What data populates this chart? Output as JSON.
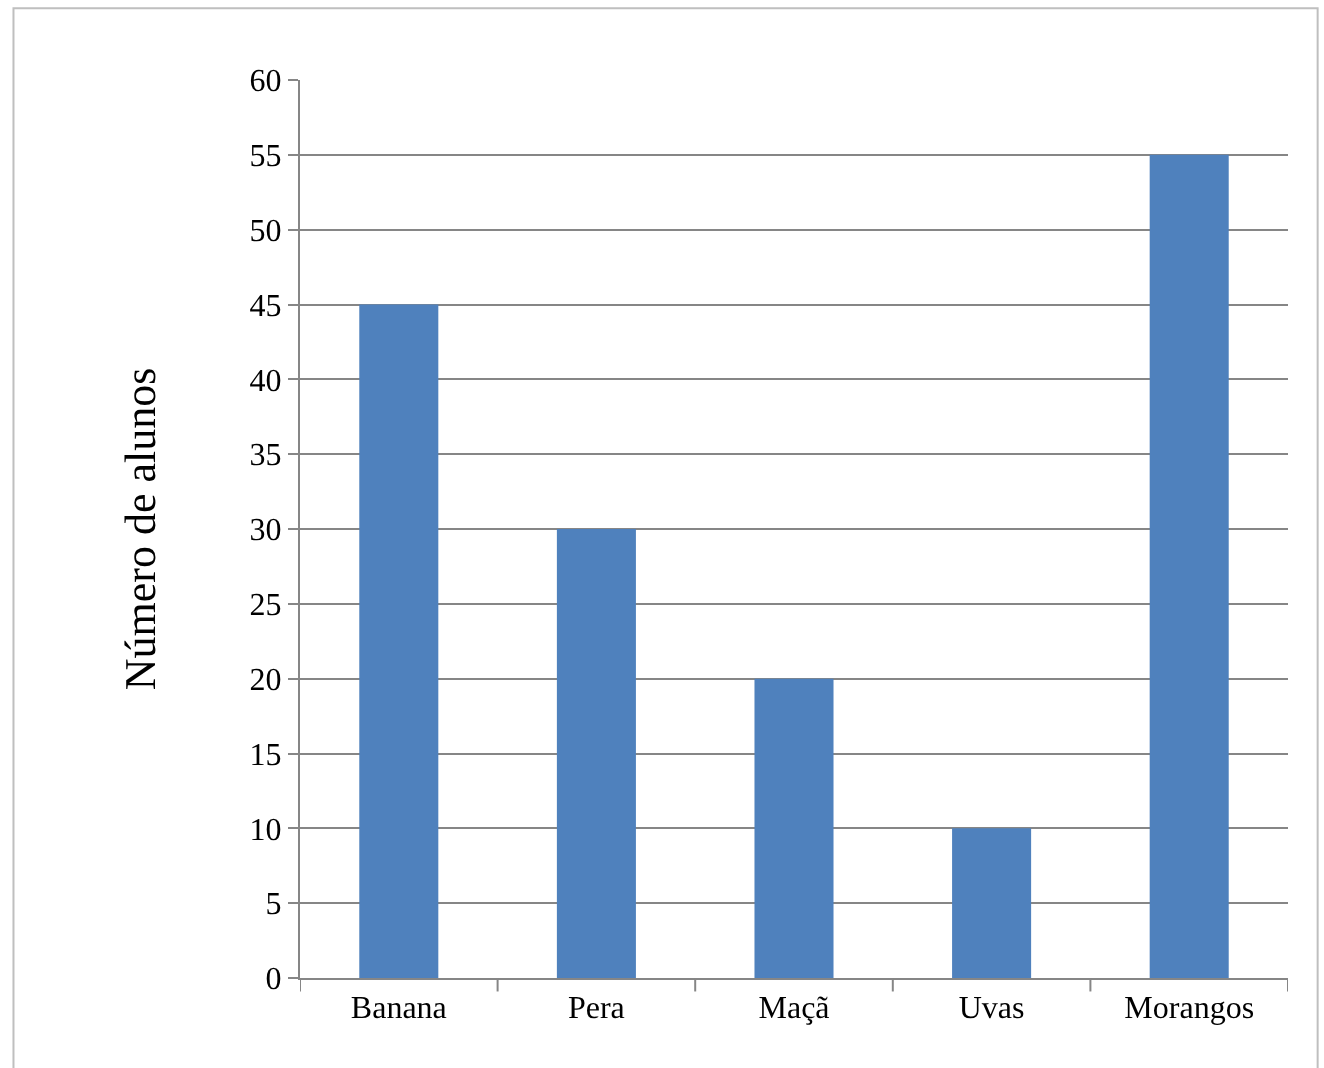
{
  "chart_data": {
    "type": "bar",
    "ylabel": "Número de alunos",
    "categories": [
      "Banana",
      "Pera",
      "Maçã",
      "Uvas",
      "Morangos"
    ],
    "values": [
      45,
      30,
      20,
      10,
      55
    ],
    "color": "#4f81bd",
    "ylim": [
      0,
      60
    ],
    "yticks": [
      0,
      5,
      10,
      15,
      20,
      25,
      30,
      35,
      40,
      45,
      50,
      55,
      60
    ],
    "grid": "y",
    "legend": false
  }
}
